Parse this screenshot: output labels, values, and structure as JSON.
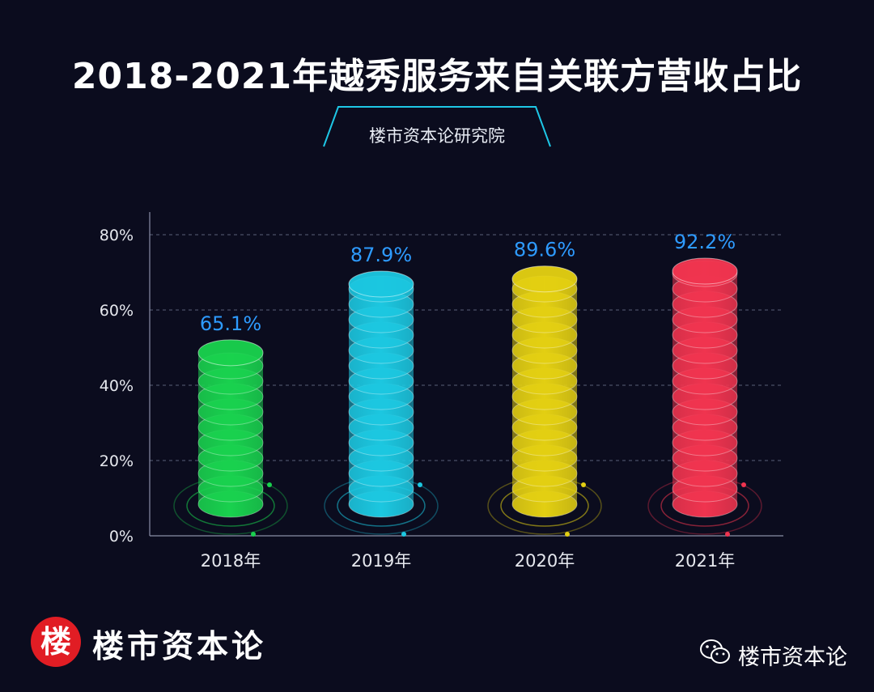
{
  "header": {
    "title": "2018-2021年越秀服务来自关联方营收占比",
    "subtitle": "楼市资本论研究院"
  },
  "footer": {
    "logo_char": "楼",
    "brand": "楼市资本论",
    "wechat_account": "楼市资本论"
  },
  "colors": {
    "background": "#0b0c1e",
    "accent_line": "#1ec7e6",
    "value_label": "#2e9bff",
    "series": [
      "#19d14e",
      "#1cc7e0",
      "#e3cf12",
      "#f0344f"
    ]
  },
  "chart_data": {
    "type": "bar",
    "categories": [
      "2018年",
      "2019年",
      "2020年",
      "2021年"
    ],
    "values": [
      65.1,
      87.9,
      89.6,
      92.2
    ],
    "value_labels": [
      "65.1%",
      "87.9%",
      "89.6%",
      "92.2%"
    ],
    "y_ticks": [
      "0%",
      "20%",
      "40%",
      "60%",
      "80%"
    ],
    "y_tick_values": [
      0,
      20,
      40,
      60,
      80
    ],
    "ylim": [
      0,
      80
    ],
    "bar_style": "stacked-disc cylinders",
    "grid": "dashed horizontal",
    "xlabel": "",
    "ylabel": ""
  }
}
